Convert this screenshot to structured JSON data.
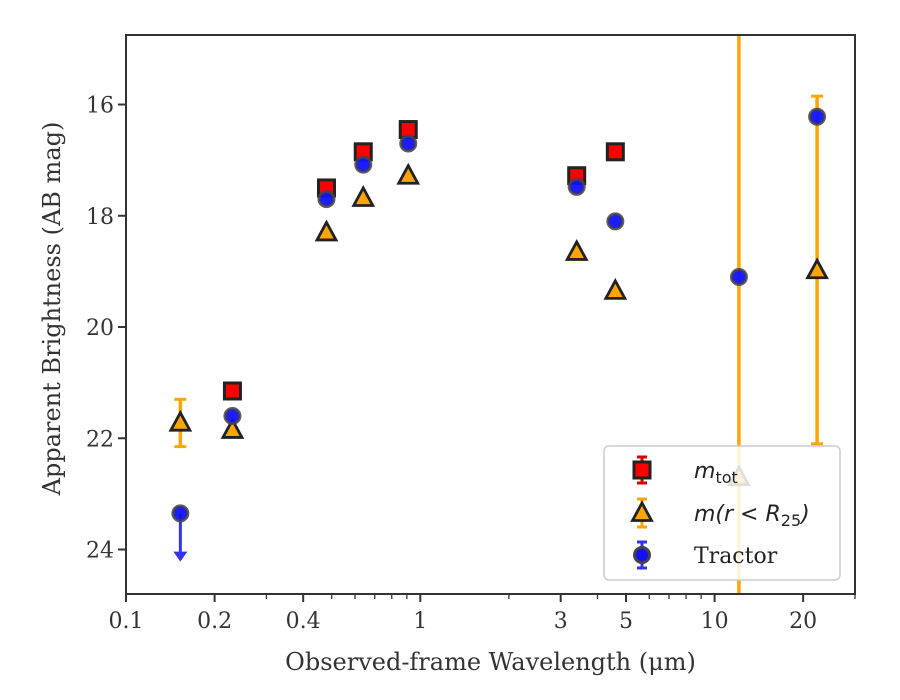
{
  "chart_data": {
    "type": "scatter",
    "xlabel": "Observed-frame Wavelength (μm)",
    "ylabel": "Apparent Brightness (AB mag)",
    "x_scale": "log",
    "xlim": [
      0.1,
      30
    ],
    "ylim": [
      24.8,
      14.75
    ],
    "y_inverted": true,
    "x_ticks": [
      0.1,
      0.2,
      0.4,
      1,
      3,
      5,
      10,
      20
    ],
    "x_tick_labels": [
      "0.1",
      "0.2",
      "0.4",
      "1",
      "3",
      "5",
      "10",
      "20"
    ],
    "y_ticks": [
      16,
      18,
      20,
      22,
      24
    ],
    "y_tick_labels": [
      "16",
      "18",
      "20",
      "22",
      "24"
    ],
    "legend_position": "lower-right",
    "grid": false,
    "series": [
      {
        "name": "m_tot",
        "marker": "square",
        "color": "#ff0000",
        "edge_color": "#222222",
        "points": [
          {
            "x": 0.23,
            "y": 21.15
          },
          {
            "x": 0.48,
            "y": 17.5
          },
          {
            "x": 0.64,
            "y": 16.85
          },
          {
            "x": 0.91,
            "y": 16.45
          },
          {
            "x": 3.4,
            "y": 17.28
          },
          {
            "x": 4.6,
            "y": 16.85
          }
        ]
      },
      {
        "name": "m(r<R25)",
        "marker": "triangle",
        "color": "#ffa500",
        "edge_color": "#222222",
        "error_color": "#ffa500",
        "points": [
          {
            "x": 0.153,
            "y": 21.72,
            "yerr_low": 21.3,
            "yerr_high": 22.15
          },
          {
            "x": 0.23,
            "y": 21.85
          },
          {
            "x": 0.48,
            "y": 18.3
          },
          {
            "x": 0.64,
            "y": 17.68
          },
          {
            "x": 0.91,
            "y": 17.28
          },
          {
            "x": 3.4,
            "y": 18.65
          },
          {
            "x": 4.6,
            "y": 19.35
          },
          {
            "x": 12.1,
            "y": 22.7,
            "yerr_low": 14.75,
            "yerr_high": 24.8
          },
          {
            "x": 22.3,
            "y": 18.98,
            "yerr_low": 15.85,
            "yerr_high": 22.1
          }
        ]
      },
      {
        "name": "Tractor",
        "marker": "circle",
        "color": "#1010ff",
        "edge_color": "#444444",
        "error_color": "#3333ee",
        "points": [
          {
            "x": 0.153,
            "y": 23.35,
            "upper_limit": true,
            "arrow_to": 24.2
          },
          {
            "x": 0.23,
            "y": 21.6
          },
          {
            "x": 0.48,
            "y": 17.7
          },
          {
            "x": 0.64,
            "y": 17.08
          },
          {
            "x": 0.91,
            "y": 16.7
          },
          {
            "x": 3.4,
            "y": 17.48
          },
          {
            "x": 4.6,
            "y": 18.1
          },
          {
            "x": 12.1,
            "y": 19.1
          },
          {
            "x": 22.3,
            "y": 16.22
          }
        ]
      }
    ]
  },
  "legend": {
    "items": [
      {
        "prefix": "m",
        "subscript": "tot",
        "suffix": ""
      },
      {
        "prefix": "m(r < R",
        "subscript": "25",
        "suffix": ")"
      },
      {
        "prefix": "Tractor",
        "subscript": "",
        "suffix": ""
      }
    ]
  }
}
